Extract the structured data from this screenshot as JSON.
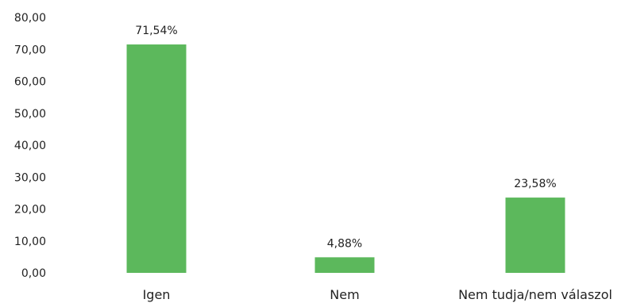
{
  "chart_data": {
    "type": "bar",
    "categories": [
      "Igen",
      "Nem",
      "Nem tudja/nem válaszol"
    ],
    "values": [
      71.54,
      4.88,
      23.58
    ],
    "data_labels": [
      "71,54%",
      "4,88%",
      "23,58%"
    ],
    "ylim": [
      0,
      80
    ],
    "yticks": [
      0,
      10,
      20,
      30,
      40,
      50,
      60,
      70,
      80
    ],
    "ytick_labels": [
      "0,00",
      "10,00",
      "20,00",
      "30,00",
      "40,00",
      "50,00",
      "60,00",
      "70,00",
      "80,00"
    ],
    "grid": false,
    "legend": "none",
    "bar_color": "#5cb85c"
  }
}
